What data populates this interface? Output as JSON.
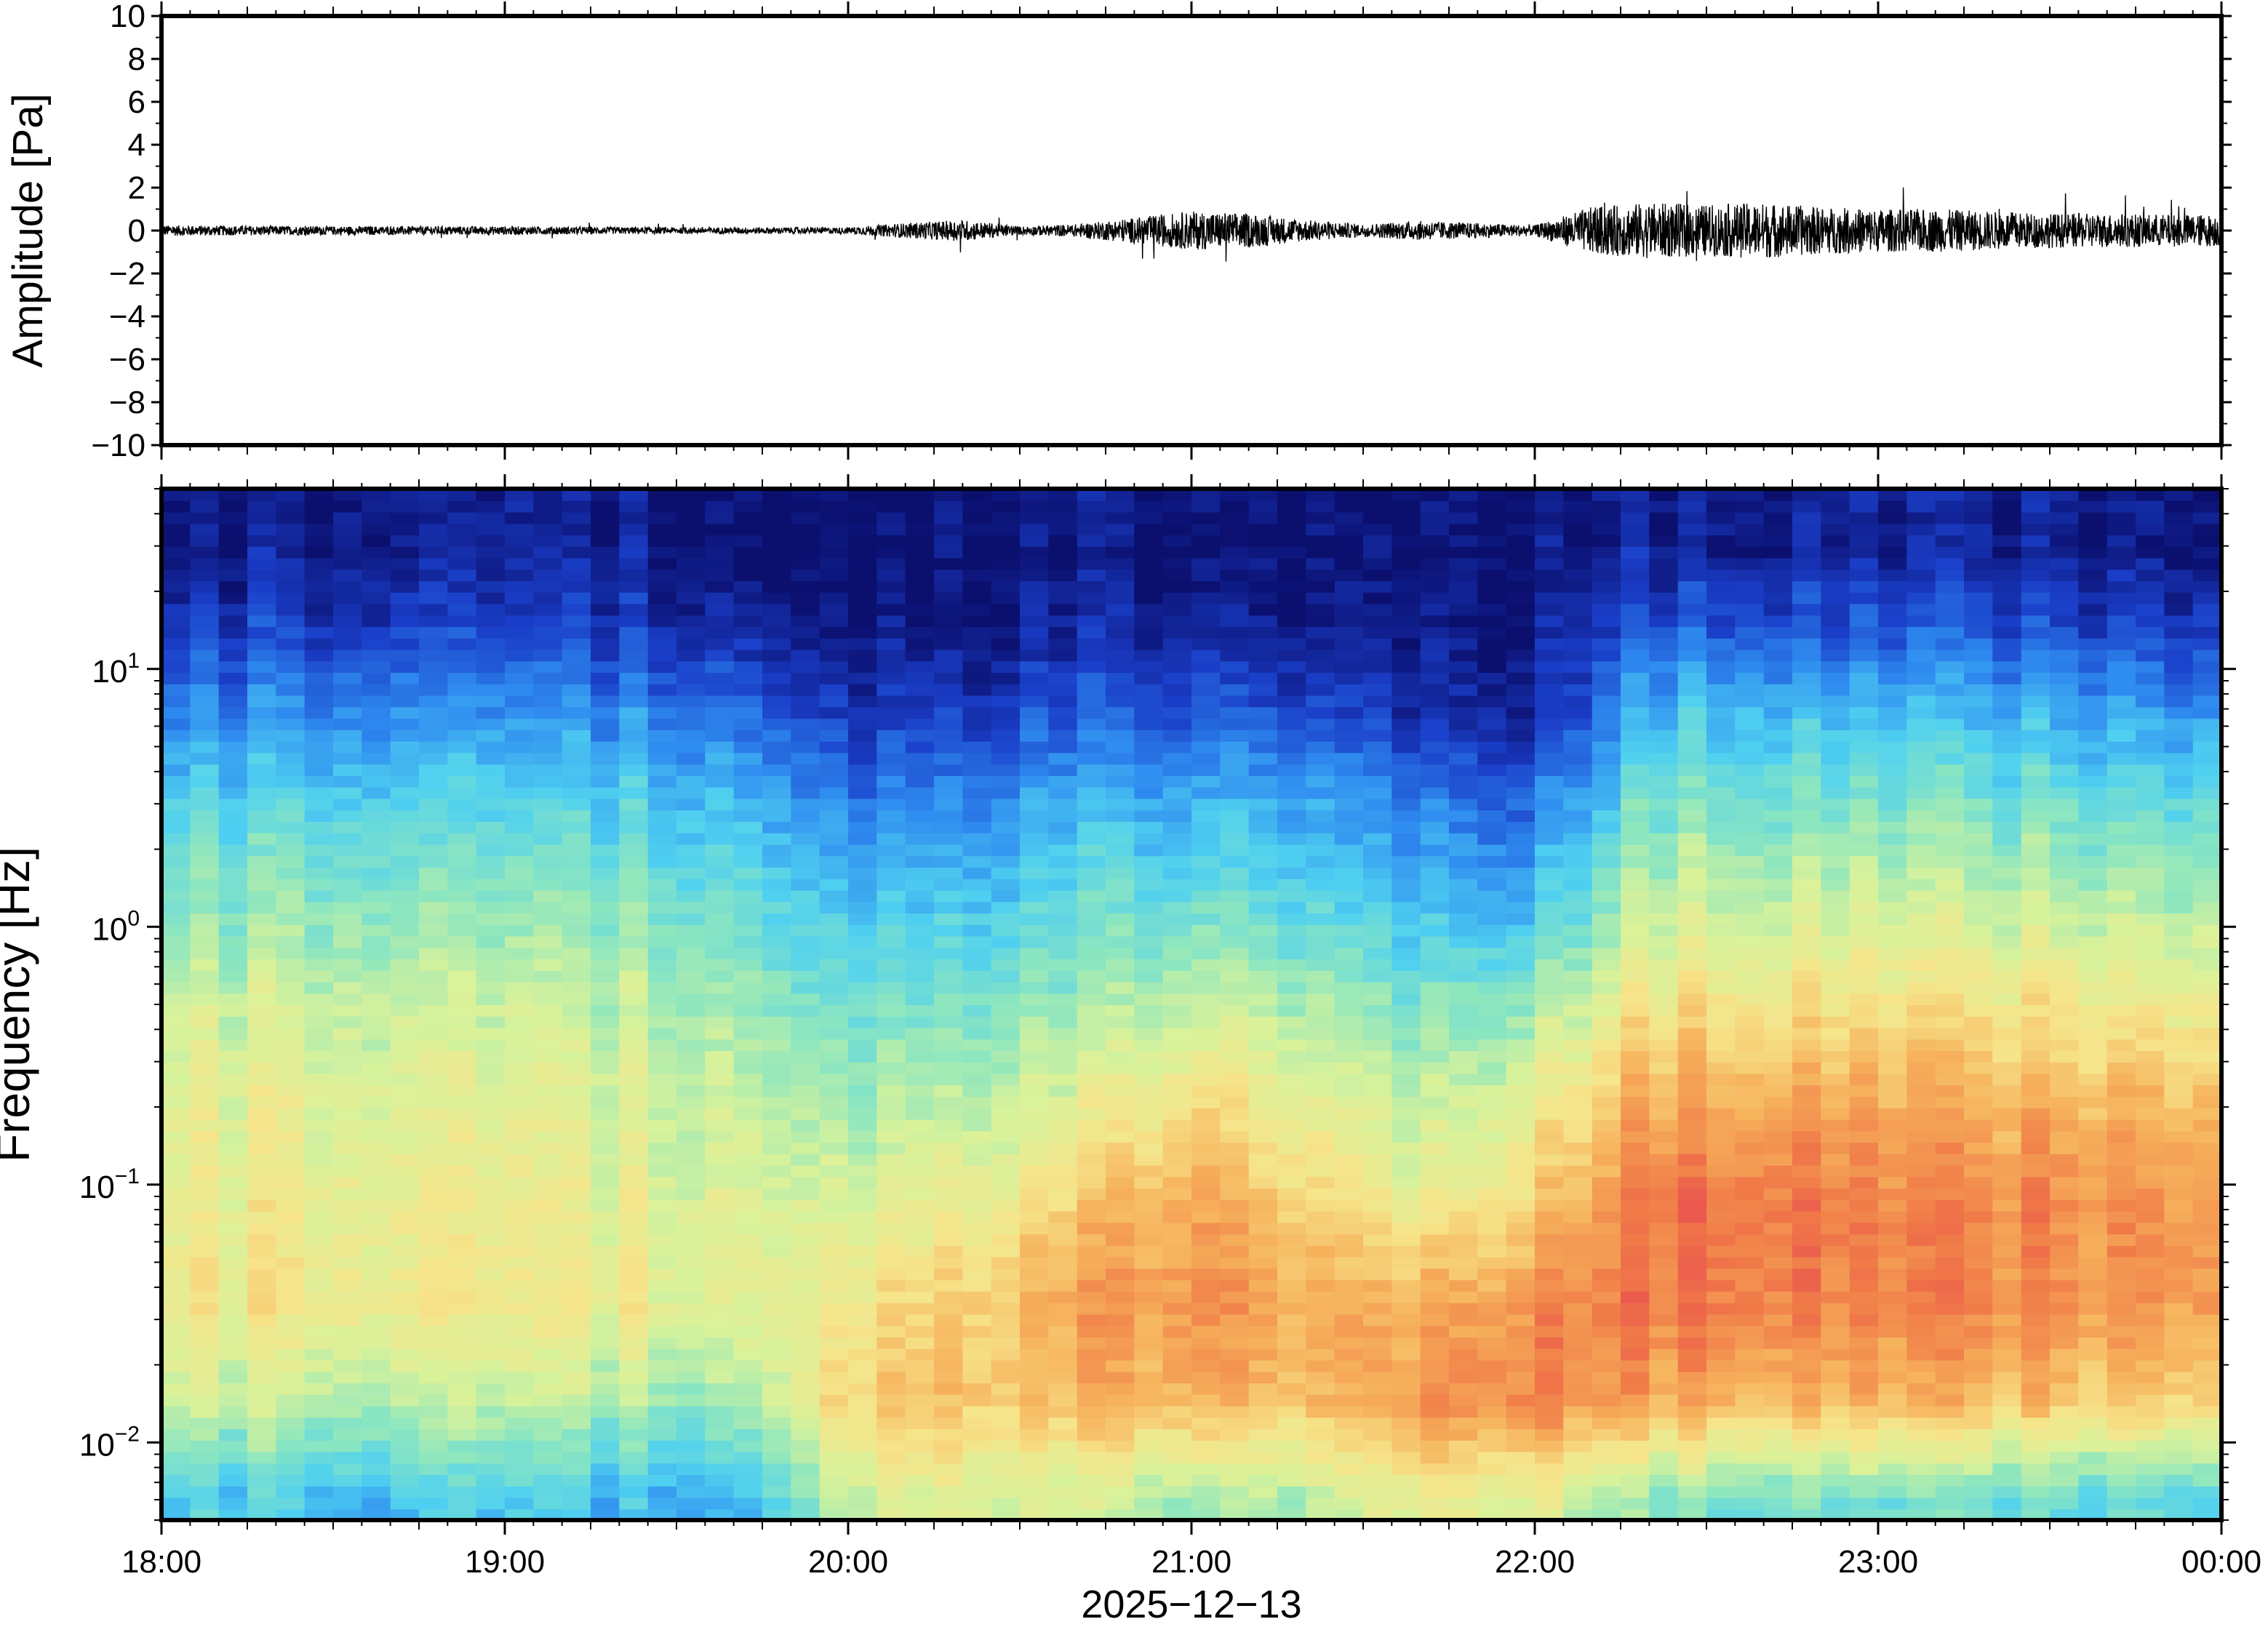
{
  "chart_data": [
    {
      "type": "line",
      "title": "",
      "xlabel": "",
      "ylabel": "Amplitude [Pa]",
      "ylim": [
        -10,
        10
      ],
      "yticks": [
        10,
        8,
        6,
        4,
        2,
        0,
        -2,
        -4,
        -6,
        -8,
        -10
      ],
      "ytick_labels": [
        "10",
        "8",
        "6",
        "4",
        "2",
        "0",
        "−2",
        "−4",
        "−6",
        "−8",
        "−10"
      ],
      "x_start": "18:00",
      "x_end": "00:00",
      "grid": false,
      "legend": "none",
      "series": [
        {
          "x": [
            "18:00",
            "18:30",
            "19:00",
            "19:30",
            "20:00",
            "20:10",
            "20:20",
            "20:30",
            "20:40",
            "20:50",
            "21:00",
            "21:10",
            "21:20",
            "21:30",
            "21:40",
            "21:50",
            "22:00",
            "22:10",
            "22:20",
            "22:30",
            "22:40",
            "22:50",
            "23:00",
            "23:10",
            "23:20",
            "23:30",
            "23:40",
            "23:50",
            "00:00"
          ],
          "envelope": [
            0.25,
            0.2,
            0.2,
            0.15,
            0.15,
            0.35,
            0.5,
            0.2,
            0.3,
            0.6,
            0.9,
            0.8,
            0.5,
            0.3,
            0.45,
            0.35,
            0.25,
            1.1,
            1.3,
            1.2,
            1.3,
            1.1,
            1.0,
            1.0,
            0.9,
            0.8,
            0.8,
            0.75,
            0.75
          ]
        }
      ],
      "color": "#000000"
    },
    {
      "type": "heatmap",
      "title": "",
      "xlabel": "2025−12−13",
      "ylabel": "Frequency [Hz]",
      "y_scale": "log",
      "ylim": [
        0.005,
        50
      ],
      "ytick_labels": [
        {
          "base": "10",
          "exp": "1",
          "value": 10
        },
        {
          "base": "10",
          "exp": "0",
          "value": 1
        },
        {
          "base": "10",
          "exp": "−1",
          "value": 0.1
        },
        {
          "base": "10",
          "exp": "−2",
          "value": 0.01
        }
      ],
      "xtick_labels": [
        "18:00",
        "19:00",
        "20:00",
        "21:00",
        "22:00",
        "23:00",
        "00:00"
      ],
      "colormap": "jet",
      "colormap_colors": [
        "#0b0f6e",
        "#1a3ec8",
        "#2f8cf0",
        "#4fd0f0",
        "#8ce6c0",
        "#d9f29a",
        "#f6e48a",
        "#f6b25c",
        "#f07a48",
        "#e84a50"
      ],
      "grid": false,
      "legend": "none",
      "time_bins": [
        "18:00",
        "18:20",
        "18:40",
        "19:00",
        "19:20",
        "19:40",
        "20:00",
        "20:20",
        "20:40",
        "21:00",
        "21:20",
        "21:40",
        "22:00",
        "22:20",
        "22:40",
        "23:00",
        "23:20",
        "23:40"
      ],
      "freq_bins": [
        0.006,
        0.015,
        0.035,
        0.08,
        0.2,
        0.5,
        1.2,
        3,
        7,
        15,
        30
      ],
      "values": [
        [
          0.35,
          0.55,
          0.65,
          0.62,
          0.6,
          0.55,
          0.45,
          0.35,
          0.22,
          0.1,
          0.03
        ],
        [
          0.33,
          0.54,
          0.64,
          0.62,
          0.6,
          0.55,
          0.45,
          0.35,
          0.22,
          0.1,
          0.03
        ],
        [
          0.3,
          0.52,
          0.63,
          0.61,
          0.58,
          0.53,
          0.45,
          0.35,
          0.22,
          0.1,
          0.03
        ],
        [
          0.32,
          0.52,
          0.62,
          0.6,
          0.58,
          0.52,
          0.44,
          0.34,
          0.22,
          0.1,
          0.03
        ],
        [
          0.3,
          0.5,
          0.62,
          0.6,
          0.57,
          0.52,
          0.44,
          0.34,
          0.22,
          0.1,
          0.03
        ],
        [
          0.3,
          0.5,
          0.6,
          0.6,
          0.56,
          0.5,
          0.43,
          0.33,
          0.2,
          0.08,
          0.02
        ],
        [
          0.55,
          0.72,
          0.66,
          0.58,
          0.5,
          0.42,
          0.32,
          0.22,
          0.1,
          0.03,
          0.01
        ],
        [
          0.58,
          0.74,
          0.72,
          0.62,
          0.52,
          0.43,
          0.33,
          0.22,
          0.1,
          0.03,
          0.01
        ],
        [
          0.55,
          0.75,
          0.8,
          0.72,
          0.58,
          0.46,
          0.38,
          0.28,
          0.14,
          0.05,
          0.02
        ],
        [
          0.5,
          0.8,
          0.86,
          0.82,
          0.7,
          0.55,
          0.42,
          0.3,
          0.16,
          0.06,
          0.02
        ],
        [
          0.52,
          0.75,
          0.8,
          0.72,
          0.62,
          0.5,
          0.38,
          0.28,
          0.14,
          0.05,
          0.02
        ],
        [
          0.62,
          0.84,
          0.78,
          0.62,
          0.52,
          0.42,
          0.3,
          0.2,
          0.08,
          0.02,
          0.01
        ],
        [
          0.58,
          0.88,
          0.84,
          0.72,
          0.6,
          0.48,
          0.3,
          0.18,
          0.06,
          0.02,
          0.01
        ],
        [
          0.45,
          0.8,
          0.9,
          0.9,
          0.8,
          0.66,
          0.54,
          0.42,
          0.3,
          0.15,
          0.05
        ],
        [
          0.42,
          0.8,
          0.9,
          0.92,
          0.82,
          0.68,
          0.56,
          0.44,
          0.32,
          0.16,
          0.05
        ],
        [
          0.42,
          0.78,
          0.88,
          0.88,
          0.8,
          0.67,
          0.55,
          0.43,
          0.3,
          0.15,
          0.05
        ],
        [
          0.4,
          0.76,
          0.86,
          0.86,
          0.78,
          0.66,
          0.54,
          0.42,
          0.28,
          0.14,
          0.05
        ],
        [
          0.38,
          0.74,
          0.84,
          0.85,
          0.78,
          0.64,
          0.52,
          0.4,
          0.26,
          0.12,
          0.04
        ]
      ]
    }
  ]
}
